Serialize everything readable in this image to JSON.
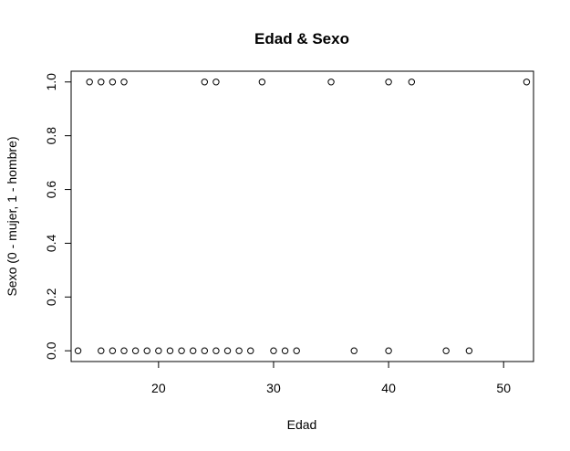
{
  "chart_data": {
    "type": "scatter",
    "title": "Edad & Sexo",
    "xlabel": "Edad",
    "ylabel": "Sexo (0 - mujer, 1 - hombre)",
    "xlim": [
      12.4,
      52.6
    ],
    "ylim": [
      -0.04,
      1.04
    ],
    "xticks": [
      20,
      30,
      40,
      50
    ],
    "yticks": [
      0.0,
      0.2,
      0.4,
      0.6,
      0.8,
      1.0
    ],
    "ytick_labels": [
      "0.0",
      "0.2",
      "0.4",
      "0.6",
      "0.8",
      "1.0"
    ],
    "grid": false,
    "marker": "open-circle",
    "points": [
      {
        "x": 13,
        "y": 0
      },
      {
        "x": 14,
        "y": 1
      },
      {
        "x": 15,
        "y": 1
      },
      {
        "x": 15,
        "y": 0
      },
      {
        "x": 16,
        "y": 1
      },
      {
        "x": 16,
        "y": 0
      },
      {
        "x": 17,
        "y": 1
      },
      {
        "x": 17,
        "y": 0
      },
      {
        "x": 18,
        "y": 0
      },
      {
        "x": 19,
        "y": 0
      },
      {
        "x": 20,
        "y": 0
      },
      {
        "x": 21,
        "y": 0
      },
      {
        "x": 22,
        "y": 0
      },
      {
        "x": 23,
        "y": 0
      },
      {
        "x": 24,
        "y": 1
      },
      {
        "x": 24,
        "y": 0
      },
      {
        "x": 25,
        "y": 1
      },
      {
        "x": 25,
        "y": 0
      },
      {
        "x": 26,
        "y": 0
      },
      {
        "x": 27,
        "y": 0
      },
      {
        "x": 28,
        "y": 0
      },
      {
        "x": 29,
        "y": 1
      },
      {
        "x": 30,
        "y": 0
      },
      {
        "x": 31,
        "y": 0
      },
      {
        "x": 32,
        "y": 0
      },
      {
        "x": 35,
        "y": 1
      },
      {
        "x": 37,
        "y": 0
      },
      {
        "x": 40,
        "y": 1
      },
      {
        "x": 40,
        "y": 0
      },
      {
        "x": 42,
        "y": 1
      },
      {
        "x": 45,
        "y": 0
      },
      {
        "x": 47,
        "y": 0
      },
      {
        "x": 52,
        "y": 1
      }
    ]
  }
}
